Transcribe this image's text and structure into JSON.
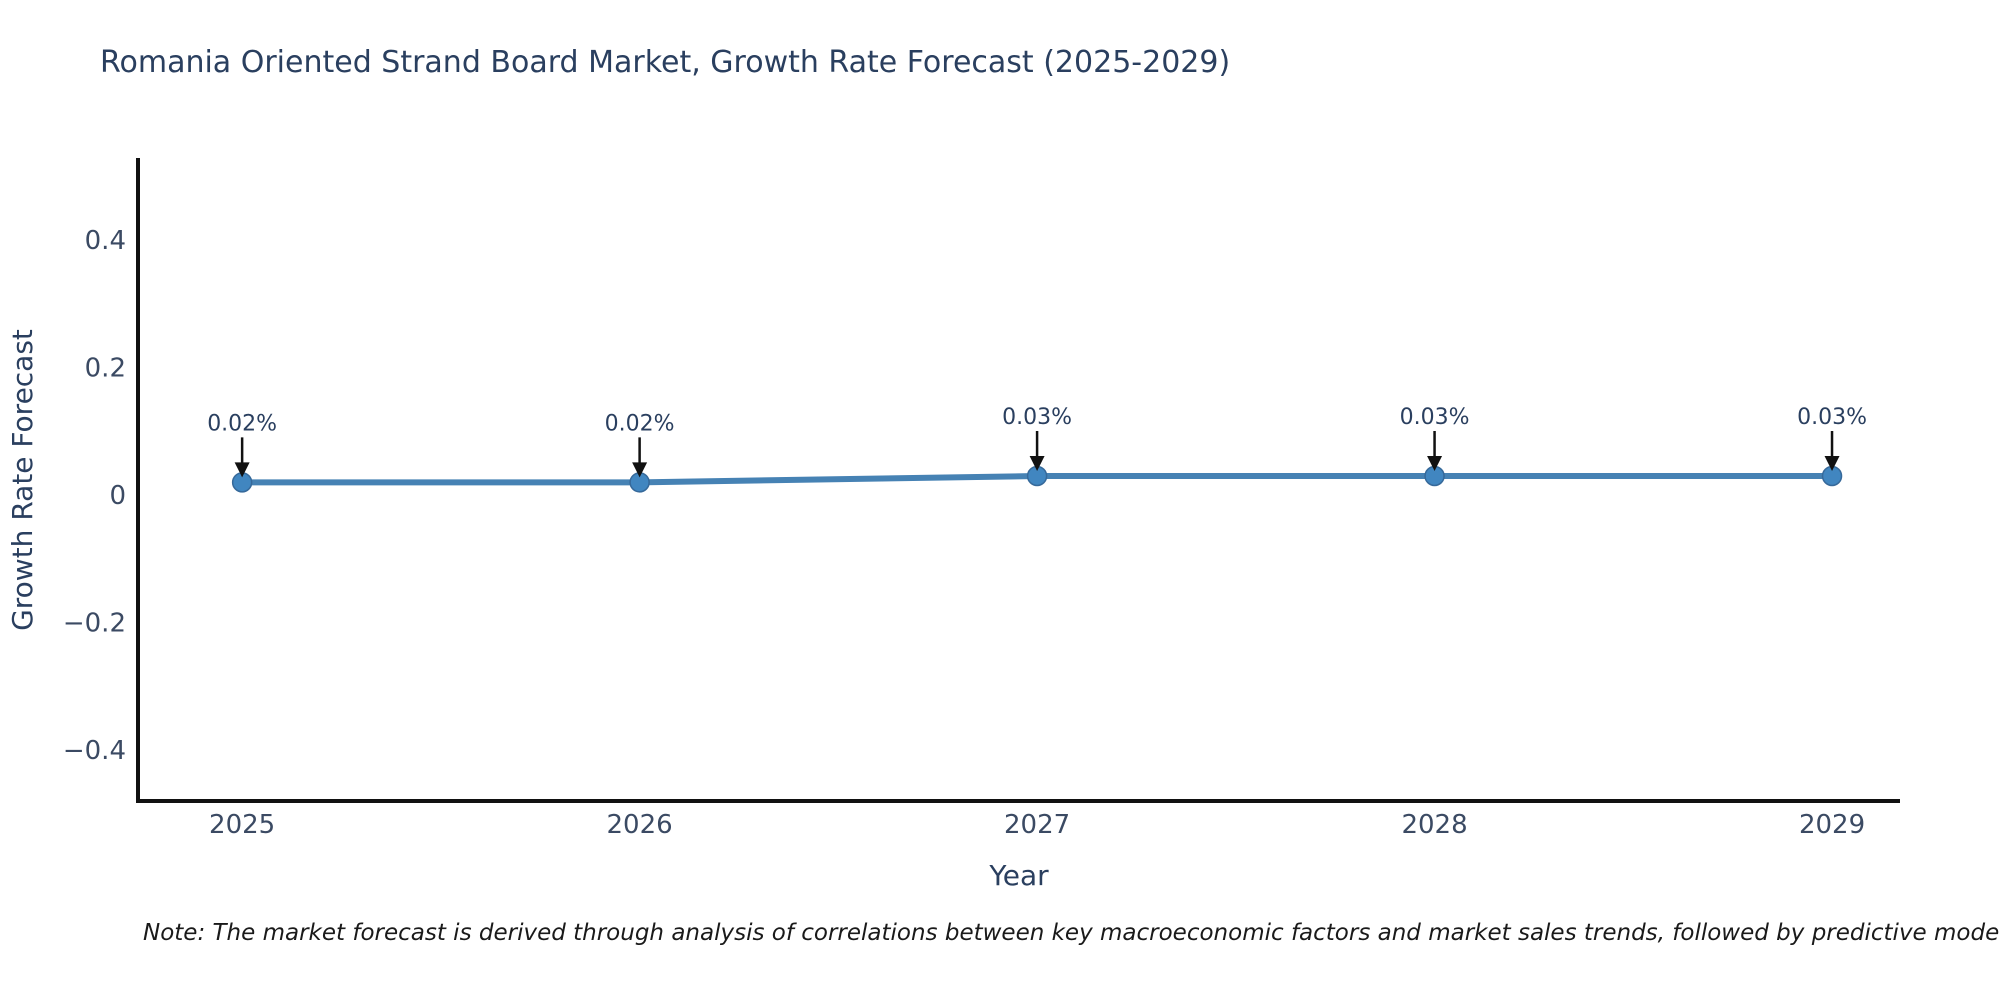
{
  "chart_data": {
    "type": "line",
    "title": "Romania Oriented Strand Board Market, Growth Rate Forecast (2025-2029)",
    "xlabel": "Year",
    "ylabel": "Growth Rate Forecast",
    "x": [
      2025,
      2026,
      2027,
      2028,
      2029
    ],
    "y": [
      0.02,
      0.02,
      0.03,
      0.03,
      0.03
    ],
    "point_labels": [
      "0.02%",
      "0.02%",
      "0.03%",
      "0.03%",
      "0.03%"
    ],
    "x_tick_labels": [
      "2025",
      "2026",
      "2027",
      "2028",
      "2029"
    ],
    "y_ticks": [
      0.4,
      0.2,
      0,
      -0.2,
      -0.4
    ],
    "y_tick_labels": [
      "0.4",
      "0.2",
      "0",
      "−0.2",
      "−0.4"
    ],
    "xlim": [
      2024.738,
      2029.171
    ],
    "ylim": [
      -0.48,
      0.529
    ],
    "grid": false,
    "legend": "none",
    "line_color": "#4682b4",
    "marker_color": "#4186c0",
    "marker_edge_color": "#36699a",
    "arrow_color": "#111111",
    "axis_color": "#111111",
    "title_color": "#2a3f5f",
    "tick_color": "#3b4a63"
  },
  "note": {
    "text": "Note: The market forecast is derived through analysis of correlations between key macroeconomic factors and market sales trends, followed by predictive modeling to project future sa"
  }
}
